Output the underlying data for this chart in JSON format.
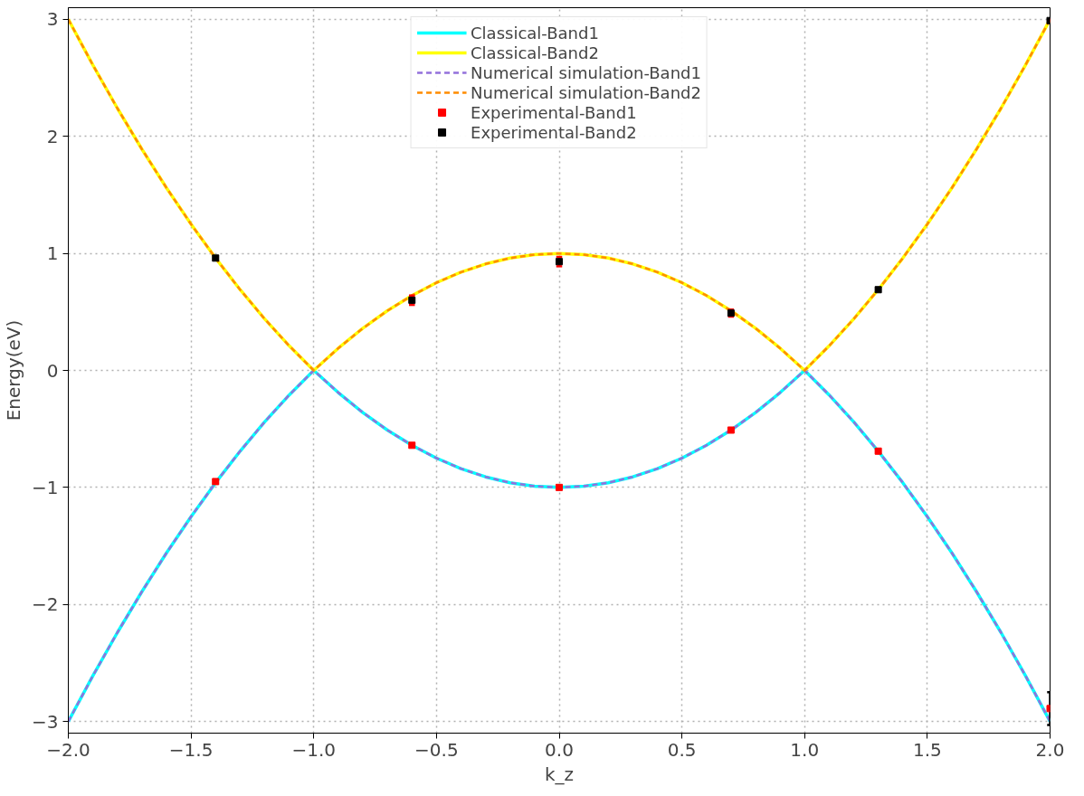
{
  "chart_data": {
    "type": "line",
    "xlabel": "k_z",
    "ylabel": "Energy(eV)",
    "x": [
      -2.0,
      -1.9,
      -1.8,
      -1.7,
      -1.6,
      -1.5,
      -1.4,
      -1.3,
      -1.2,
      -1.1,
      -1.0,
      -0.9,
      -0.8,
      -0.7,
      -0.6,
      -0.5,
      -0.4,
      -0.3,
      -0.2,
      -0.1,
      0.0,
      0.1,
      0.2,
      0.3,
      0.4,
      0.5,
      0.6,
      0.7,
      0.8,
      0.9,
      1.0,
      1.1,
      1.2,
      1.3,
      1.4,
      1.5,
      1.6,
      1.7,
      1.8,
      1.9,
      2.0
    ],
    "series": [
      {
        "name": "Classical-Band1",
        "color": "#00ffff",
        "line_style": "solid",
        "values": [
          -3,
          -2.61,
          -2.24,
          -1.89,
          -1.56,
          -1.25,
          -0.96,
          -0.69,
          -0.44,
          -0.21,
          0,
          -0.19,
          -0.36,
          -0.51,
          -0.64,
          -0.75,
          -0.84,
          -0.91,
          -0.96,
          -0.99,
          -1,
          -0.99,
          -0.96,
          -0.91,
          -0.84,
          -0.75,
          -0.64,
          -0.51,
          -0.36,
          -0.19,
          0,
          -0.21,
          -0.44,
          -0.69,
          -0.96,
          -1.25,
          -1.56,
          -1.89,
          -2.24,
          -2.61,
          -3
        ]
      },
      {
        "name": "Classical-Band2",
        "color": "#ffff00",
        "line_style": "solid",
        "values": [
          3,
          2.61,
          2.24,
          1.89,
          1.56,
          1.25,
          0.96,
          0.69,
          0.44,
          0.21,
          0,
          0.19,
          0.36,
          0.51,
          0.64,
          0.75,
          0.84,
          0.91,
          0.96,
          0.99,
          1,
          0.99,
          0.96,
          0.91,
          0.84,
          0.75,
          0.64,
          0.51,
          0.36,
          0.19,
          0,
          0.21,
          0.44,
          0.69,
          0.96,
          1.25,
          1.56,
          1.89,
          2.24,
          2.61,
          3
        ]
      },
      {
        "name": "Numerical simulation-Band1",
        "color": "#9370db",
        "line_style": "dashed",
        "values": [
          -3,
          -2.61,
          -2.24,
          -1.89,
          -1.56,
          -1.25,
          -0.96,
          -0.69,
          -0.44,
          -0.21,
          0,
          -0.19,
          -0.36,
          -0.51,
          -0.64,
          -0.75,
          -0.84,
          -0.91,
          -0.96,
          -0.99,
          -1,
          -0.99,
          -0.96,
          -0.91,
          -0.84,
          -0.75,
          -0.64,
          -0.51,
          -0.36,
          -0.19,
          0,
          -0.21,
          -0.44,
          -0.69,
          -0.96,
          -1.25,
          -1.56,
          -1.89,
          -2.24,
          -2.61,
          -3
        ]
      },
      {
        "name": "Numerical simulation-Band2",
        "color": "#ff8c00",
        "line_style": "dashed",
        "values": [
          3,
          2.61,
          2.24,
          1.89,
          1.56,
          1.25,
          0.96,
          0.69,
          0.44,
          0.21,
          0,
          0.19,
          0.36,
          0.51,
          0.64,
          0.75,
          0.84,
          0.91,
          0.96,
          0.99,
          1,
          0.99,
          0.96,
          0.91,
          0.84,
          0.75,
          0.64,
          0.51,
          0.36,
          0.19,
          0,
          0.21,
          0.44,
          0.69,
          0.96,
          1.25,
          1.56,
          1.89,
          2.24,
          2.61,
          3
        ]
      },
      {
        "name": "Experimental-Band1",
        "type": "scatter",
        "marker": "square",
        "color": "#ff0000",
        "x": [
          -1.4,
          -0.6,
          0.0,
          0.7,
          1.3,
          2.0
        ],
        "values": [
          -0.95,
          -0.64,
          -1.0,
          -0.51,
          -0.69,
          -2.89
        ],
        "errors": [
          0.01,
          0.01,
          0.01,
          0.01,
          0.01,
          0.14
        ]
      },
      {
        "name": "Experimental-Band2",
        "type": "scatter",
        "marker": "square",
        "color": "#000000",
        "x": [
          -1.4,
          -0.6,
          0.0,
          0.7,
          1.3,
          2.0
        ],
        "values": [
          0.96,
          0.6,
          0.93,
          0.49,
          0.69,
          2.99
        ],
        "errors": [
          0.01,
          0.04,
          0.04,
          0.03,
          0.01,
          0.01
        ]
      }
    ],
    "xlim": [
      -2.0,
      2.0
    ],
    "ylim": [
      -3.1,
      3.1
    ],
    "xticks": [
      {
        "value": -2.0,
        "label": "−2.0"
      },
      {
        "value": -1.5,
        "label": "−1.5"
      },
      {
        "value": -1.0,
        "label": "−1.0"
      },
      {
        "value": -0.5,
        "label": "−0.5"
      },
      {
        "value": 0,
        "label": "0.0"
      },
      {
        "value": 0.5,
        "label": "0.5"
      },
      {
        "value": 1.0,
        "label": "1.0"
      },
      {
        "value": 1.5,
        "label": "1.5"
      },
      {
        "value": 2.0,
        "label": "2.0"
      }
    ],
    "yticks": [
      {
        "value": -3,
        "label": "−3"
      },
      {
        "value": -2,
        "label": "−2"
      },
      {
        "value": -1,
        "label": "−1"
      },
      0,
      1,
      2,
      3
    ],
    "grid": true,
    "legend": "top"
  }
}
